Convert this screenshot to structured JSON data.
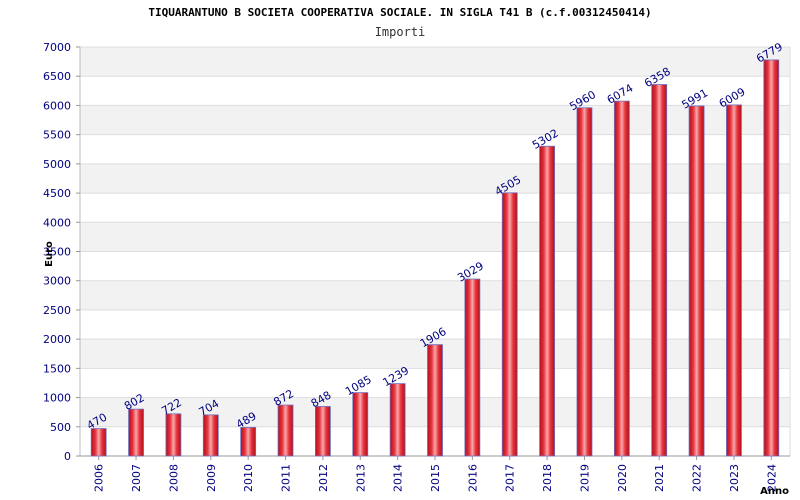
{
  "chart_data": {
    "type": "bar",
    "title": "TIQUARANTUNO B SOCIETA COOPERATIVA SOCIALE. IN SIGLA T41 B (c.f.00312450414)",
    "subtitle": "Importi",
    "xlabel": "Anno",
    "ylabel": "Euro",
    "ylim": [
      0,
      7000
    ],
    "ytick_step": 500,
    "categories": [
      "2006",
      "2007",
      "2008",
      "2009",
      "2010",
      "2011",
      "2012",
      "2013",
      "2014",
      "2015",
      "2016",
      "2017",
      "2018",
      "2019",
      "2020",
      "2021",
      "2022",
      "2023",
      "2024"
    ],
    "values": [
      470,
      802,
      722,
      704,
      489,
      872,
      848,
      1085,
      1239,
      1906,
      3029,
      4505,
      5302,
      5960,
      6074,
      6358,
      5991,
      6009,
      6779
    ],
    "colors": {
      "bar_center": "#f7a8ac",
      "bar_mid": "#e8333c",
      "bar_edge": "#b0101c",
      "bar_outline": "#7070c0",
      "label": "#000080",
      "tick_label": "#000080",
      "band": "#f2f2f2",
      "grid": "#dddddd"
    }
  }
}
